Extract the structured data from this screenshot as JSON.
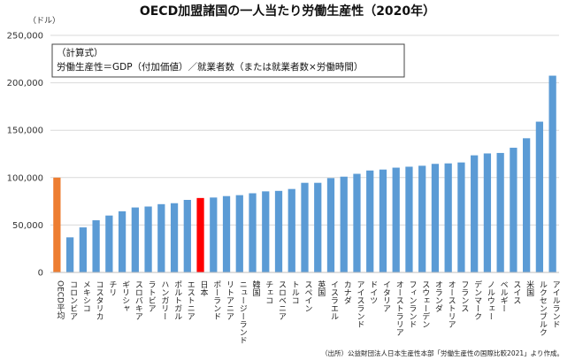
{
  "chart_data": {
    "type": "bar",
    "title": "OECD加盟諸国の一人当たり労働生産性（2020年）",
    "unit": "（ドル）",
    "formula_box": {
      "line1": "（計算式）",
      "line2": "労働生産性＝GDP（付加価値）／就業者数（または就業者数×労働時間）"
    },
    "source": "（出所）公益財団法人日本生産性本部「労働生産性の国際比較2021」より作成。",
    "ylim": [
      0,
      250000
    ],
    "yticks": [
      0,
      50000,
      100000,
      150000,
      200000,
      250000
    ],
    "ytick_labels": [
      "0",
      "50,000",
      "100,000",
      "150,000",
      "200,000",
      "250,000"
    ],
    "grid": true,
    "colors": {
      "default": "#5b9bd5",
      "oecd": "#ed7d31",
      "japan": "#ff0000"
    },
    "categories": [
      "OECD平均",
      "コロンビア",
      "メキシコ",
      "コスタリカ",
      "チリ",
      "ギリシャ",
      "スロバキア",
      "ラトビア",
      "ハンガリー",
      "ポルトガル",
      "エストニア",
      "日本",
      "ポーランド",
      "リトアニア",
      "ニュージーランド",
      "韓国",
      "チェコ",
      "スロベニア",
      "トルコ",
      "スペイン",
      "英国",
      "イスラエル",
      "カナダ",
      "アイスランド",
      "ドイツ",
      "イタリア",
      "オーストラリア",
      "フィンランド",
      "スウェーデン",
      "オランダ",
      "オーストリア",
      "フランス",
      "デンマーク",
      "ノルウェー",
      "ベルギー",
      "スイス",
      "米国",
      "ルクセンブルク",
      "アイルランド"
    ],
    "values": [
      100000,
      37000,
      47500,
      55000,
      60000,
      64500,
      68500,
      69500,
      72000,
      73000,
      76500,
      78500,
      79000,
      80500,
      81500,
      83500,
      85500,
      86000,
      88000,
      94500,
      94500,
      99500,
      101000,
      104000,
      107500,
      108500,
      110500,
      111500,
      112500,
      114500,
      115000,
      116000,
      123500,
      125500,
      126000,
      131500,
      141500,
      159000,
      207500
    ],
    "highlight": {
      "OECD平均": "oecd",
      "日本": "japan"
    }
  }
}
